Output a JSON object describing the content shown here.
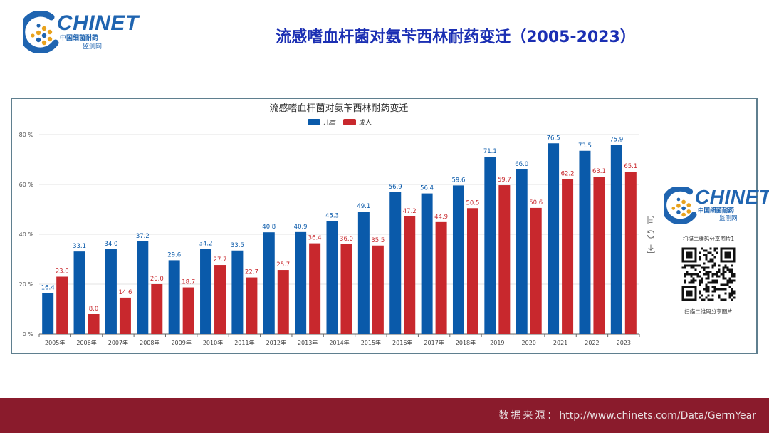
{
  "slide_title": "流感嗜血杆菌对氨苄西林耐药变迁（2005-2023）",
  "logo": {
    "brand": "CHINET",
    "subtitle": "中国细菌耐药",
    "subtitle2": "监测网",
    "colors": {
      "blue": "#1f64b0",
      "orange": "#e8a21c"
    }
  },
  "chart_data": {
    "type": "bar",
    "title": "流感嗜血杆菌对氨苄西林耐药变迁",
    "categories": [
      "2005年",
      "2006年",
      "2007年",
      "2008年",
      "2009年",
      "2010年",
      "2011年",
      "2012年",
      "2013年",
      "2014年",
      "2015年",
      "2016年",
      "2017年",
      "2018年",
      "2019",
      "2020",
      "2021",
      "2022",
      "2023"
    ],
    "series": [
      {
        "name": "儿童",
        "color": "#0a5aaa",
        "values": [
          16.4,
          33.1,
          34.0,
          37.2,
          29.6,
          34.2,
          33.5,
          40.8,
          40.9,
          45.3,
          49.1,
          56.9,
          56.4,
          59.6,
          71.1,
          66.0,
          76.5,
          73.5,
          75.9
        ]
      },
      {
        "name": "成人",
        "color": "#c8282d",
        "values": [
          23.0,
          8.0,
          14.6,
          20.0,
          18.7,
          27.7,
          22.7,
          25.7,
          36.4,
          36.0,
          35.5,
          47.2,
          44.9,
          50.5,
          59.7,
          50.6,
          62.2,
          63.1,
          65.1
        ]
      }
    ],
    "y_ticks": [
      "0 %",
      "20 %",
      "40 %",
      "60 %",
      "80 %"
    ],
    "ylim": [
      0,
      80
    ],
    "xlabel": "",
    "ylabel": "",
    "legend_position": "top-center",
    "grid": true,
    "data_labels": true
  },
  "toolbox": {
    "icons": [
      "data-view-icon",
      "restore-icon",
      "save-image-icon"
    ]
  },
  "qr": {
    "caption_top": "扫描二维码分享图片1",
    "caption_bottom": "扫描二维码分享图片"
  },
  "footer": {
    "label": "数据来源：",
    "url": "http://www.chinets.com/Data/GermYear",
    "background": "#8a1b2c"
  }
}
